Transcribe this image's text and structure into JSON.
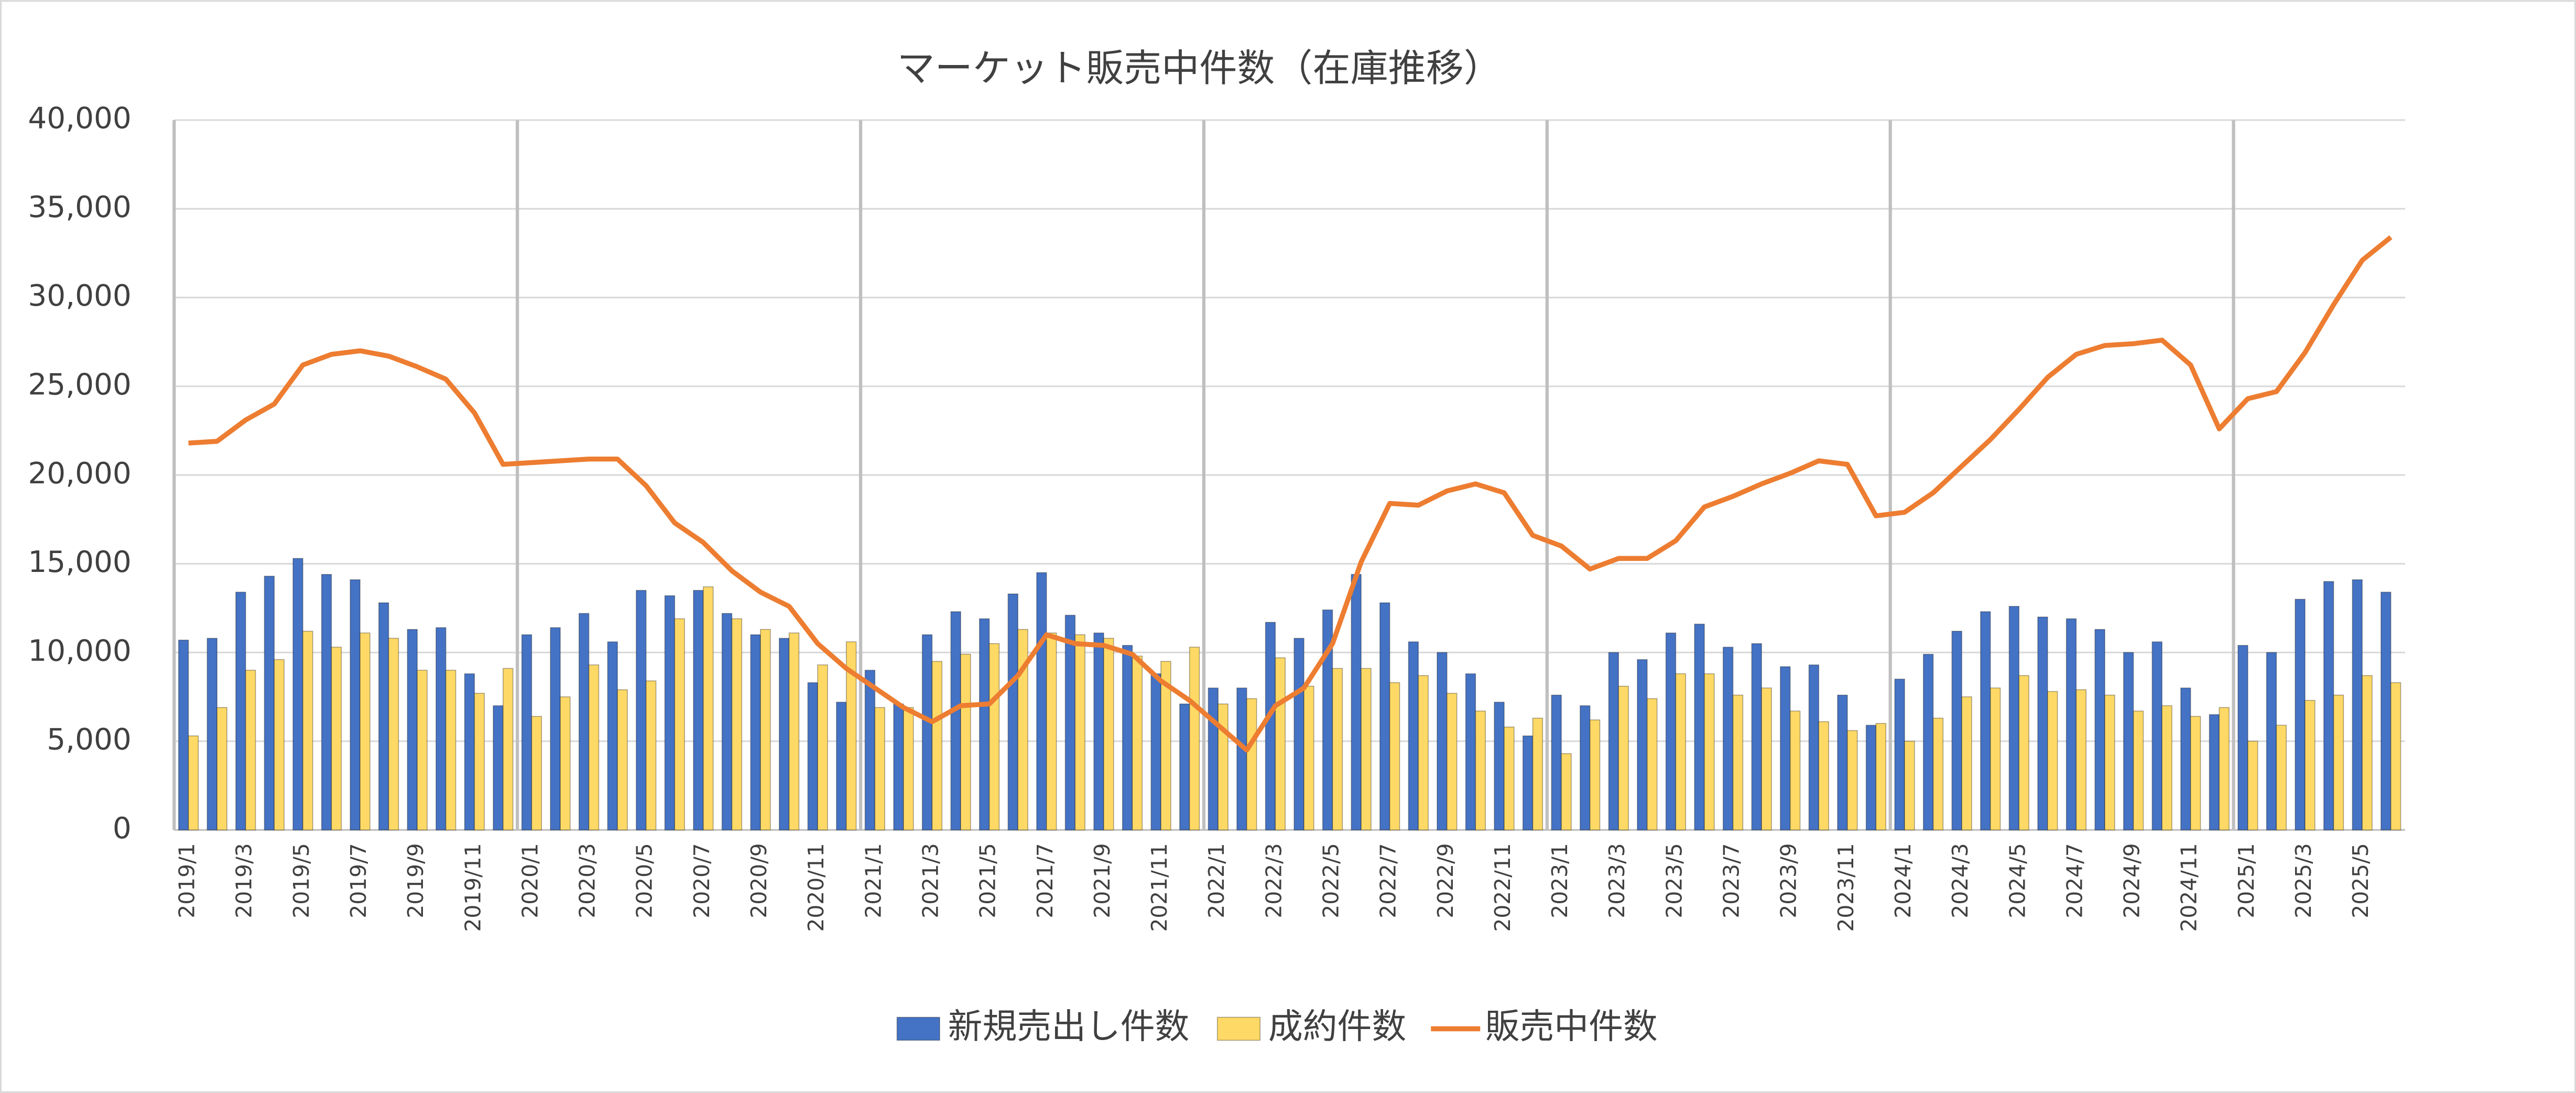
{
  "chart_data": {
    "type": "bar_line",
    "title": "マーケット販売中件数（在庫推移）",
    "categories": [
      "2019/1",
      null,
      "2019/3",
      null,
      "2019/5",
      null,
      "2019/7",
      null,
      "2019/9",
      null,
      "2019/11",
      null,
      "2020/1",
      null,
      "2020/3",
      null,
      "2020/5",
      null,
      "2020/7",
      null,
      "2020/9",
      null,
      "2020/11",
      null,
      "2021/1",
      null,
      "2021/3",
      null,
      "2021/5",
      null,
      "2021/7",
      null,
      "2021/9",
      null,
      "2021/11",
      null,
      "2022/1",
      null,
      "2022/3",
      null,
      "2022/5",
      null,
      "2022/7",
      null,
      "2022/9",
      null,
      "2022/11",
      null,
      "2023/1",
      null,
      "2023/3",
      null,
      "2023/5",
      null,
      "2023/7",
      null,
      "2023/9",
      null,
      "2023/11",
      null,
      "2024/1",
      null,
      "2024/3",
      null,
      "2024/5",
      null,
      "2024/7",
      null,
      "2024/9",
      null,
      "2024/11",
      null,
      "2025/1",
      null,
      "2025/3",
      null,
      "2025/5",
      null
    ],
    "series": [
      {
        "name": "新規売出し件数",
        "type": "bar",
        "color": "#4472c4",
        "values": [
          10700,
          10800,
          13400,
          14300,
          15300,
          14400,
          14100,
          12800,
          11300,
          11400,
          8800,
          7000,
          11000,
          11400,
          12200,
          10600,
          13500,
          13200,
          13500,
          12200,
          11000,
          10800,
          8300,
          7200,
          9000,
          7100,
          11000,
          12300,
          11900,
          13300,
          14500,
          12100,
          11100,
          10400,
          8800,
          7100,
          8000,
          8000,
          11700,
          10800,
          12400,
          14400,
          12800,
          10600,
          10000,
          8800,
          7200,
          5300,
          7600,
          7000,
          10000,
          9600,
          11100,
          11600,
          10300,
          10500,
          9200,
          9300,
          7600,
          5900,
          8500,
          9900,
          11200,
          12300,
          12600,
          12000,
          11900,
          11300,
          10000,
          10600,
          8000,
          6500,
          10400,
          10000,
          13000,
          14000,
          14100,
          13400
        ]
      },
      {
        "name": "成約件数",
        "type": "bar",
        "color": "#ffd966",
        "values": [
          5300,
          6900,
          9000,
          9600,
          11200,
          10300,
          11100,
          10800,
          9000,
          9000,
          7700,
          9100,
          6400,
          7500,
          9300,
          7900,
          8400,
          11900,
          13700,
          11900,
          11300,
          11100,
          9300,
          10600,
          6900,
          6900,
          9500,
          9900,
          10500,
          11300,
          11100,
          11000,
          10800,
          9800,
          9500,
          10300,
          7100,
          7400,
          9700,
          8100,
          9100,
          9100,
          8300,
          8700,
          7700,
          6700,
          5800,
          6300,
          4300,
          6200,
          8100,
          7400,
          8800,
          8800,
          7600,
          8000,
          6700,
          6100,
          5600,
          6000,
          5000,
          6300,
          7500,
          8000,
          8700,
          7800,
          7900,
          7600,
          6700,
          7000,
          6400,
          6900,
          5000,
          5900,
          7300,
          7600,
          8700,
          8300
        ]
      },
      {
        "name": "販売中件数",
        "type": "line",
        "color": "#ed7d31",
        "values": [
          21800,
          21900,
          23100,
          24000,
          26200,
          26800,
          27000,
          26700,
          26100,
          25400,
          23500,
          20600,
          20700,
          20800,
          20900,
          20900,
          19400,
          17300,
          16200,
          14600,
          13400,
          12600,
          10500,
          9100,
          8000,
          6900,
          6100,
          7000,
          7100,
          8700,
          11000,
          10500,
          10400,
          9900,
          8400,
          7300,
          5900,
          4500,
          7000,
          8000,
          10500,
          15100,
          18400,
          18300,
          19100,
          19500,
          19000,
          16600,
          16000,
          14700,
          15300,
          15300,
          16300,
          18200,
          18800,
          19500,
          20100,
          20800,
          20600,
          17700,
          17900,
          19000,
          20500,
          22000,
          23700,
          25500,
          26800,
          27300,
          27400,
          27600,
          26200,
          22600,
          24300,
          24700,
          26900,
          29600,
          32100,
          33400
        ]
      }
    ],
    "ylim": [
      0,
      40000
    ],
    "yticks": [
      0,
      {
        "value": 5000,
        "label": "5,000"
      },
      {
        "value": 10000,
        "label": "10,000"
      },
      {
        "value": 15000,
        "label": "15,000"
      },
      {
        "value": 20000,
        "label": "20,000"
      },
      {
        "value": 25000,
        "label": "25,000"
      },
      {
        "value": 30000,
        "label": "30,000"
      },
      {
        "value": 35000,
        "label": "35,000"
      },
      {
        "value": 40000,
        "label": "40,000"
      }
    ],
    "grid": true,
    "legend": "bottom"
  }
}
